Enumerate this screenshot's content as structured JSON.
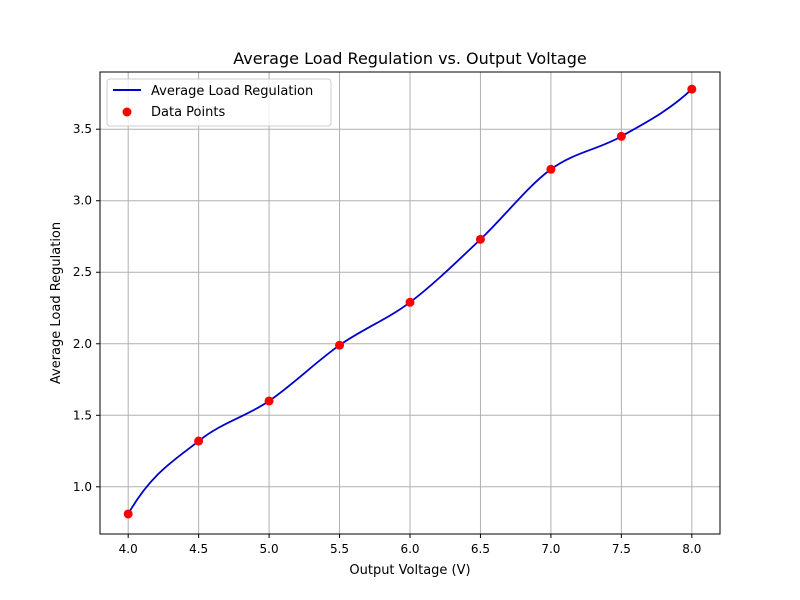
{
  "chart_data": {
    "type": "line",
    "title": "Average Load Regulation vs. Output Voltage",
    "xlabel": "Output Voltage (V)",
    "ylabel": "Average Load Regulation",
    "xlim": [
      3.8,
      8.2
    ],
    "ylim": [
      0.67,
      3.9
    ],
    "x_ticks": [
      4.0,
      4.5,
      5.0,
      5.5,
      6.0,
      6.5,
      7.0,
      7.5,
      8.0
    ],
    "x_tick_labels": [
      "4.0",
      "4.5",
      "5.0",
      "5.5",
      "6.0",
      "6.5",
      "7.0",
      "7.5",
      "8.0"
    ],
    "y_ticks": [
      1.0,
      1.5,
      2.0,
      2.5,
      3.0,
      3.5
    ],
    "y_tick_labels": [
      "1.0",
      "1.5",
      "2.0",
      "2.5",
      "3.0",
      "3.5"
    ],
    "grid": true,
    "legend_position": "top-left",
    "series": [
      {
        "name": "Average Load Regulation",
        "kind": "smooth-line",
        "color": "#0000cc",
        "x": [
          4.0,
          4.5,
          5.0,
          5.5,
          6.0,
          6.5,
          7.0,
          7.5,
          8.0
        ],
        "y": [
          0.81,
          1.32,
          1.6,
          1.99,
          2.29,
          2.73,
          3.22,
          3.45,
          3.78
        ]
      },
      {
        "name": "Data Points",
        "kind": "scatter",
        "color": "#ff0000",
        "x": [
          4.0,
          4.5,
          5.0,
          5.5,
          6.0,
          6.5,
          7.0,
          7.5,
          8.0
        ],
        "y": [
          0.81,
          1.32,
          1.6,
          1.99,
          2.29,
          2.73,
          3.22,
          3.45,
          3.78
        ]
      }
    ]
  }
}
